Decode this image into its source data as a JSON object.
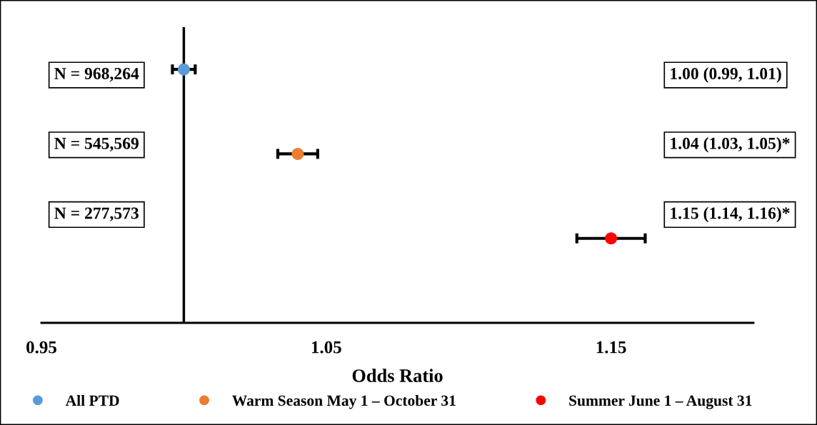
{
  "chart_data": {
    "type": "scatter",
    "orientation": "horizontal",
    "xlabel": "Odds Ratio",
    "categories": [
      null,
      null,
      null
    ],
    "series": [
      {
        "name": "All PTD",
        "color": "#5b9bd5",
        "values": [
          1.0,
          null,
          null
        ],
        "errors": [
          0.004,
          null,
          null
        ]
      },
      {
        "name": "Warm Season May 1 – October 31",
        "color": "#ed7d31",
        "values": [
          null,
          1.04,
          null
        ],
        "errors": [
          null,
          0.007,
          null
        ]
      },
      {
        "name": "Summer June 1 – August 31",
        "color": "#ff0000",
        "values": [
          null,
          null,
          1.15
        ],
        "errors": [
          null,
          null,
          0.012
        ]
      }
    ],
    "xlim": [
      0.95,
      1.2
    ],
    "xticks": [
      0.95,
      1.05,
      1.15
    ],
    "ref_lines": [
      {
        "axis": "x",
        "value": 1.0,
        "color": "#000000",
        "line_style": "solid"
      }
    ],
    "annotations": [
      "N = 968,264",
      "1.00 (0.99, 1.01)",
      "N = 545,569",
      "1.04 (1.03, 1.05)*",
      "N = 277,573",
      "1.15 (1.14, 1.16)*"
    ],
    "legend": "bottom",
    "marker": "circle"
  }
}
